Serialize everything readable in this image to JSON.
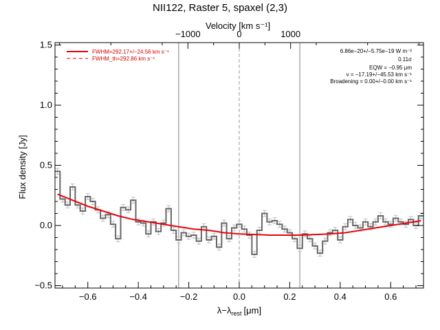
{
  "chart_data": {
    "type": "line",
    "title": "NII122, Raster 5, spaxel (2,3)",
    "xlabel": "λ−λ",
    "xlabel_sub": "rest",
    "xlabel_unit": "[μm]",
    "ylabel": "Flux density [Jy]",
    "top_axis_label": "Velocity [km s⁻¹]",
    "xlim": [
      -0.73,
      0.73
    ],
    "ylim": [
      -0.52,
      1.52
    ],
    "x_ticks": [
      -0.6,
      -0.4,
      -0.2,
      0.0,
      0.2,
      0.4,
      0.6
    ],
    "x_tick_labels": [
      "−0.6",
      "−0.4",
      "−0.2",
      "0.0",
      "0.2",
      "0.4",
      "0.6"
    ],
    "y_ticks": [
      -0.5,
      0.0,
      0.5,
      1.0,
      1.5
    ],
    "y_tick_labels": [
      "−0.5",
      "0.0",
      "0.5",
      "1.0",
      "1.5"
    ],
    "velocity_ticks": [
      -1000,
      0,
      1000
    ],
    "velocity_tick_labels": [
      "−1000",
      "0",
      "1000"
    ],
    "velocity_per_micron": 4916,
    "vertical_lines": [
      -0.24,
      0.0,
      0.24
    ],
    "series": [
      {
        "name": "",
        "style": "step",
        "color": "#666666",
        "x": [
          -0.72,
          -0.7,
          -0.68,
          -0.66,
          -0.64,
          -0.62,
          -0.6,
          -0.58,
          -0.56,
          -0.54,
          -0.52,
          -0.5,
          -0.48,
          -0.46,
          -0.44,
          -0.42,
          -0.4,
          -0.38,
          -0.36,
          -0.34,
          -0.32,
          -0.3,
          -0.28,
          -0.26,
          -0.24,
          -0.22,
          -0.2,
          -0.18,
          -0.16,
          -0.14,
          -0.12,
          -0.1,
          -0.08,
          -0.06,
          -0.04,
          -0.02,
          0.0,
          0.02,
          0.04,
          0.06,
          0.08,
          0.1,
          0.12,
          0.14,
          0.16,
          0.18,
          0.2,
          0.22,
          0.24,
          0.26,
          0.28,
          0.3,
          0.32,
          0.34,
          0.36,
          0.38,
          0.4,
          0.42,
          0.44,
          0.46,
          0.48,
          0.5,
          0.52,
          0.54,
          0.56,
          0.58,
          0.6,
          0.62,
          0.64,
          0.66,
          0.68,
          0.7,
          0.72
        ],
        "y": [
          0.45,
          0.22,
          0.17,
          0.32,
          0.17,
          0.12,
          0.24,
          0.2,
          0.13,
          0.06,
          0.09,
          0.01,
          -0.11,
          0.15,
          0.13,
          0.21,
          0.03,
          0.02,
          -0.07,
          0.03,
          -0.05,
          0.02,
          0.14,
          -0.04,
          -0.12,
          -0.06,
          -0.09,
          -0.08,
          -0.13,
          -0.01,
          -0.12,
          -0.09,
          -0.18,
          0.02,
          -0.11,
          -0.02,
          0.01,
          -0.03,
          -0.08,
          -0.24,
          -0.04,
          0.1,
          0.03,
          0.04,
          0.01,
          -0.03,
          -0.06,
          -0.11,
          -0.19,
          -0.07,
          -0.11,
          -0.17,
          -0.23,
          -0.13,
          -0.06,
          -0.04,
          -0.12,
          -0.01,
          0.05,
          0.0,
          -0.02,
          0.03,
          -0.01,
          0.03,
          0.08,
          0.03,
          0.01,
          0.06,
          0.03,
          0.01,
          0.05,
          0.0,
          0.08
        ]
      },
      {
        "name": "FWHM=292.17+/−24.56 km s⁻¹",
        "style": "line",
        "color": "#e8000b",
        "x": [
          -0.72,
          -0.66,
          -0.6,
          -0.54,
          -0.48,
          -0.42,
          -0.36,
          -0.3,
          -0.24,
          -0.18,
          -0.12,
          -0.06,
          0.0,
          0.06,
          0.12,
          0.18,
          0.24,
          0.3,
          0.36,
          0.42,
          0.48,
          0.54,
          0.6,
          0.66,
          0.72
        ],
        "y": [
          0.26,
          0.21,
          0.16,
          0.12,
          0.08,
          0.05,
          0.03,
          0.01,
          -0.01,
          -0.03,
          -0.04,
          -0.06,
          -0.07,
          -0.075,
          -0.08,
          -0.08,
          -0.08,
          -0.075,
          -0.07,
          -0.06,
          -0.04,
          -0.02,
          0.0,
          0.02,
          0.04
        ]
      }
    ],
    "error_bar": 0.025,
    "legend": {
      "placement": "top-left",
      "entries": [
        {
          "label": "FWHM=292.17+/−24.56 km s⁻¹",
          "style": "solid"
        },
        {
          "label": "FWHM_th=292.86 km s⁻¹",
          "style": "dashed"
        }
      ]
    },
    "annotations": {
      "placement": "top-right",
      "lines": [
        "6.86e−20+/−5.75e−19 W m⁻²",
        "0.11σ",
        "EQW = −0.95 μm",
        "v = −17.19+/−45.53 km s⁻¹",
        "Broadening = 0.00+/−0.00 km s⁻¹"
      ]
    },
    "grid": false
  },
  "colors": {
    "data_line": "#666666",
    "error_bars": "#bdbdbd",
    "fit_line": "#e8000b",
    "marker_lines": "#808080",
    "zero_line": "#999999"
  }
}
